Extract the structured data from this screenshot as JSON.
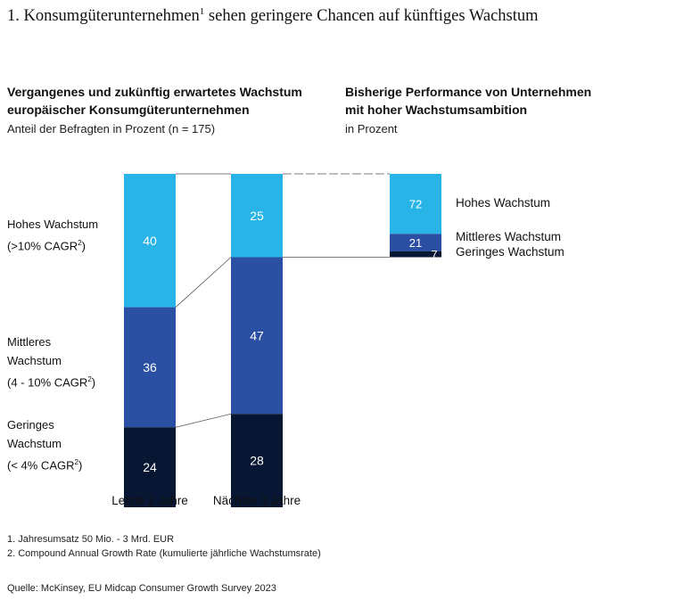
{
  "title": {
    "text": "1. Konsumgüterunternehmen",
    "sup": "1",
    "rest": " sehen geringere Chancen auf künftiges Wachstum"
  },
  "left_panel": {
    "heading_line1": "Vergangenes und zukünftig erwartetes Wachstum",
    "heading_line2": "europäischer Konsumgüterunternehmen",
    "note": "Anteil der Befragten in Prozent (n = 175)"
  },
  "right_panel": {
    "heading_line1": "Bisherige Performance von Unternehmen",
    "heading_line2": "mit hoher Wachstumsambition",
    "note": "in Prozent"
  },
  "row_labels": {
    "high": {
      "l1": "Hohes Wachstum",
      "l2a": "(>10% CAGR",
      "sup": "2",
      "l2b": ")"
    },
    "mid": {
      "l1": "Mittleres",
      "l2": "Wachstum",
      "l3a": "(4 - 10% CAGR",
      "sup": "2",
      "l3b": ")"
    },
    "low": {
      "l1": "Geringes",
      "l2": "Wachstum",
      "l3a": "(< 4% CAGR",
      "sup": "2",
      "l3b": ")"
    }
  },
  "colors": {
    "high": "#29b4e8",
    "mid": "#2b4fa2",
    "low": "#071633"
  },
  "chart_data": [
    {
      "type": "bar",
      "stacked": true,
      "categories": [
        "Letzte 3 Jahre",
        "Nächste 3 Jahre"
      ],
      "series": [
        {
          "name": "Hohes Wachstum",
          "values": [
            40,
            25
          ]
        },
        {
          "name": "Mittleres Wachstum",
          "values": [
            36,
            47
          ]
        },
        {
          "name": "Geringes Wachstum",
          "values": [
            24,
            28
          ]
        }
      ],
      "ylim": [
        0,
        100
      ]
    },
    {
      "type": "bar",
      "stacked": true,
      "categories": [
        ""
      ],
      "series": [
        {
          "name": "Hohes Wachstum",
          "values": [
            72
          ]
        },
        {
          "name": "Mittleres Wachstum",
          "values": [
            21
          ]
        },
        {
          "name": "Geringes Wachstum",
          "values": [
            7
          ]
        }
      ],
      "ylim": [
        0,
        100
      ]
    }
  ],
  "footnotes": [
    "1.  Jahresumsatz 50 Mio. - 3 Mrd. EUR",
    "2.  Compound Annual Growth Rate (kumulierte jährliche Wachstumsrate)"
  ],
  "source": "Quelle: McKinsey, EU Midcap Consumer Growth Survey 2023"
}
